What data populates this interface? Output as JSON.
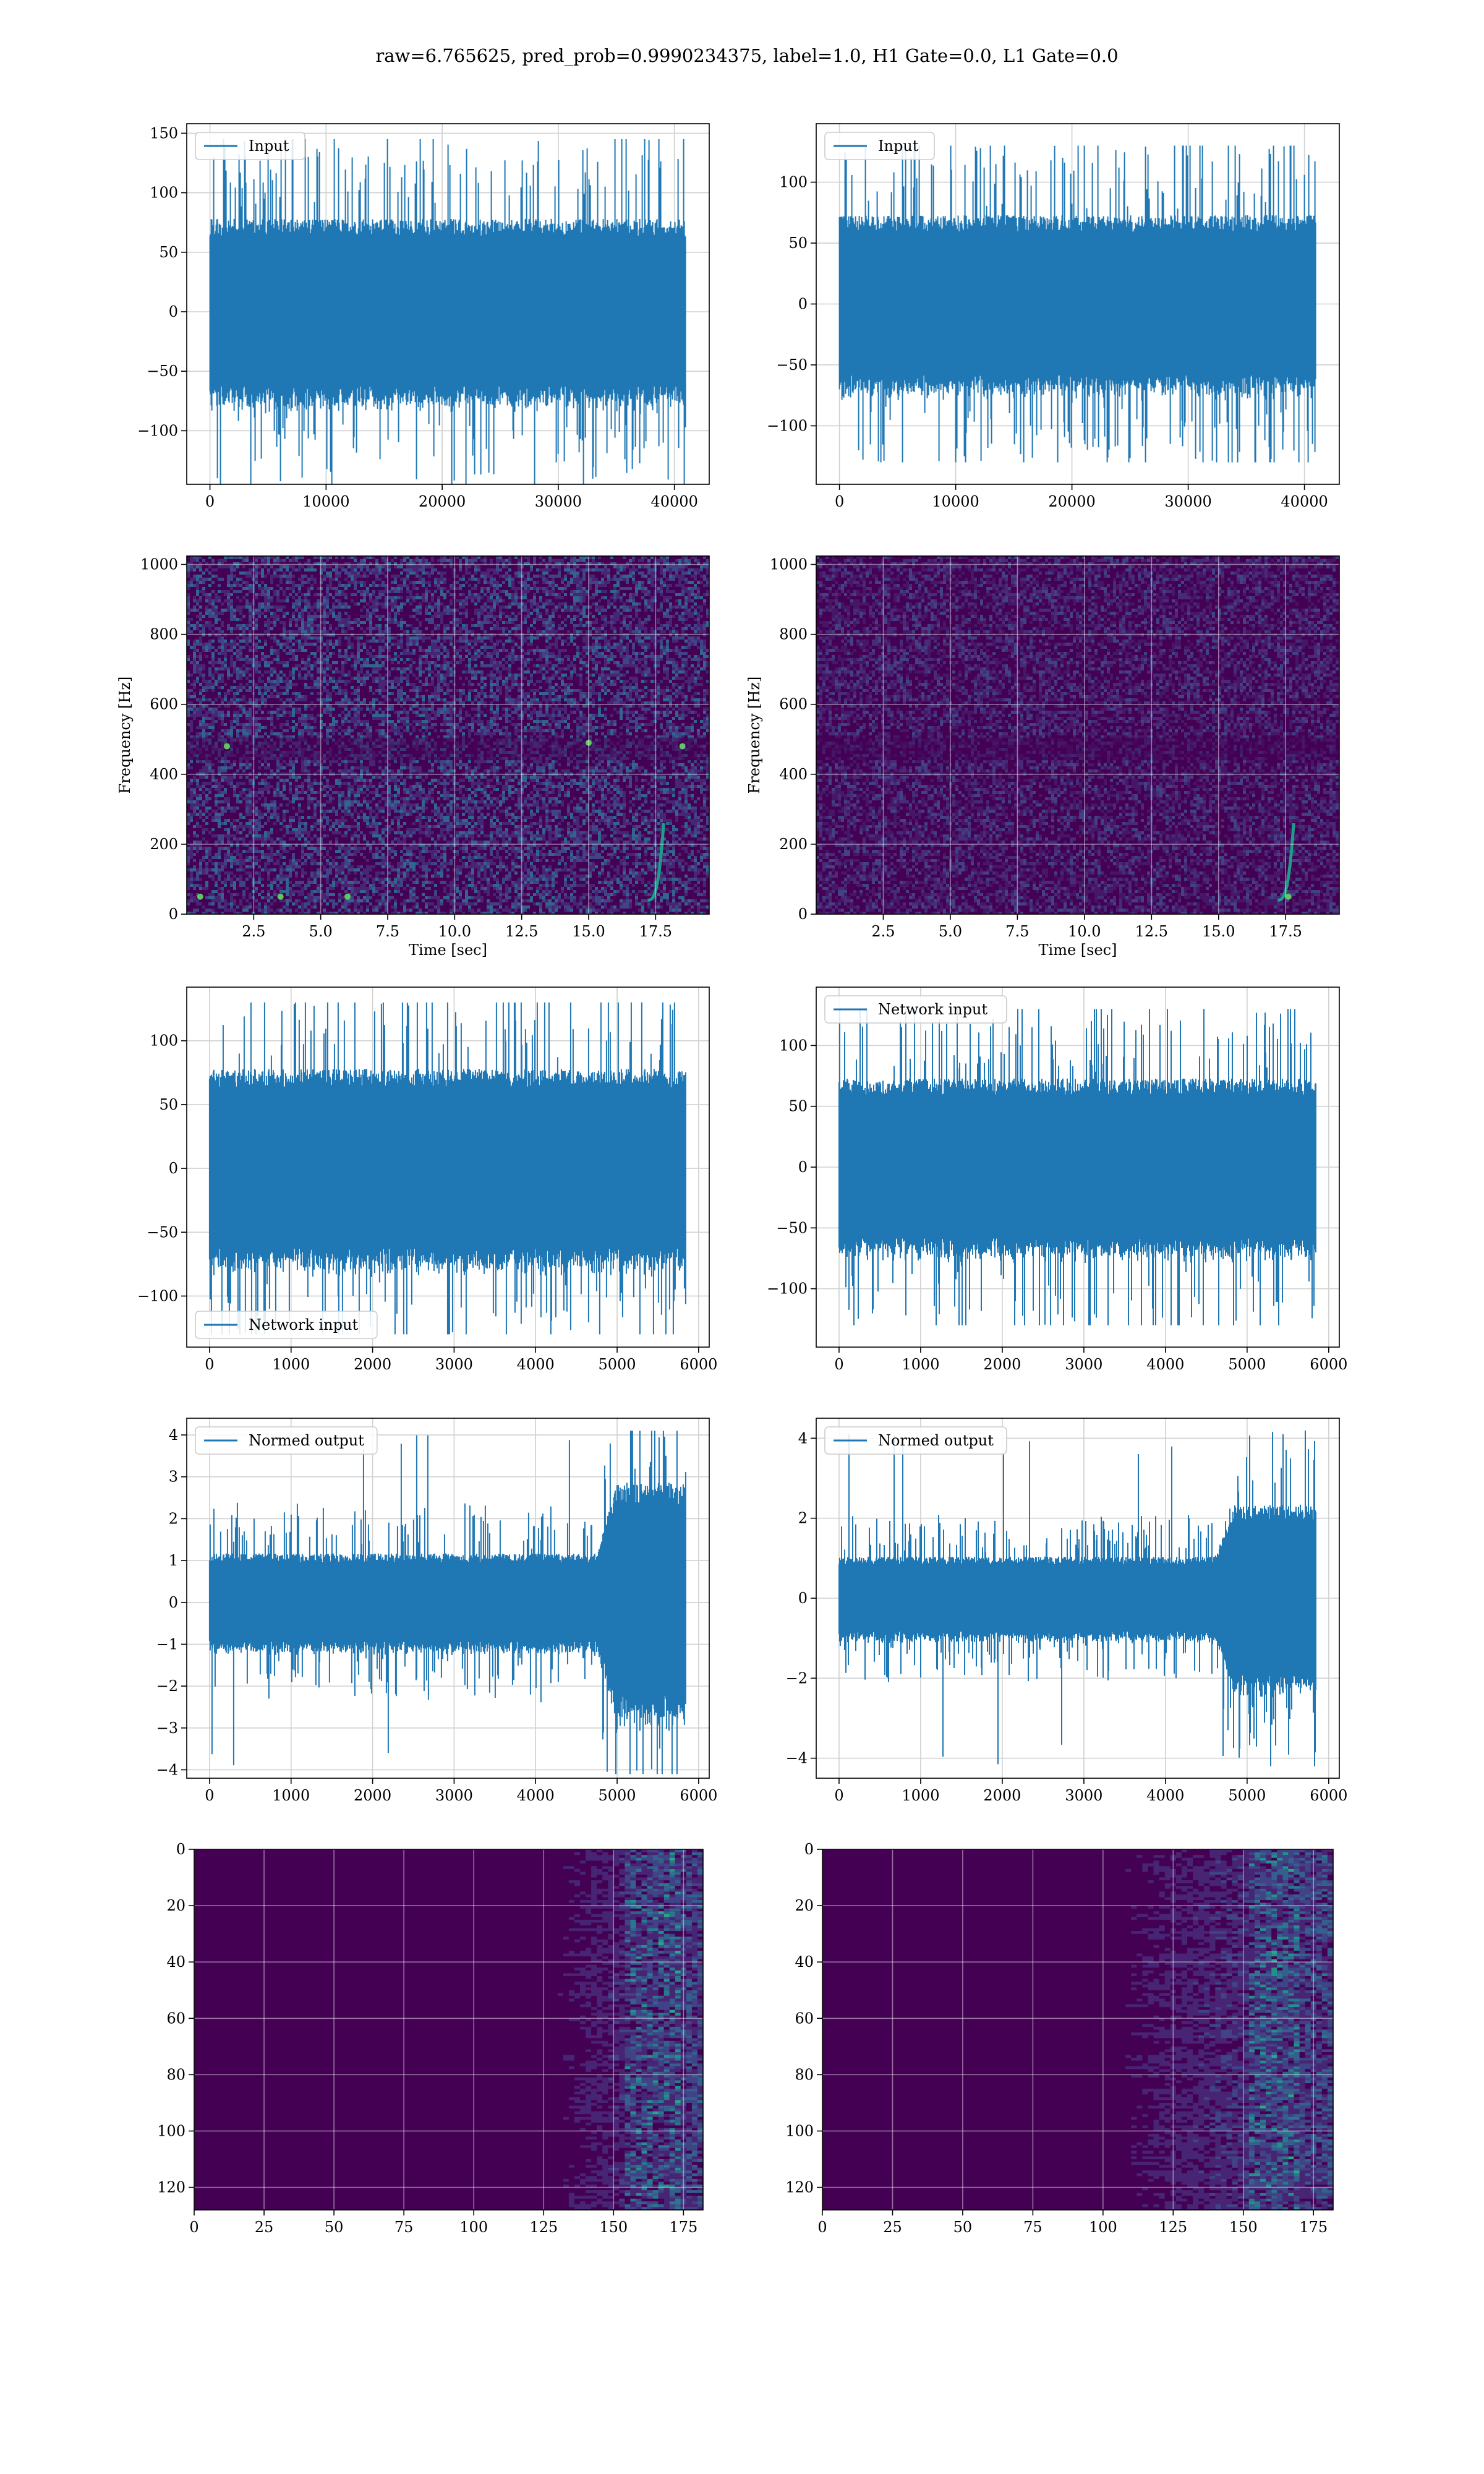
{
  "figure": {
    "suptitle": "raw=6.765625, pred_prob=0.9990234375, label=1.0, H1 Gate=0.0, L1 Gate=0.0"
  },
  "colors": {
    "line": "#1f77b4",
    "grid": "#d0d0d0",
    "viridis_low": "#440154",
    "viridis_high": "#fde725"
  },
  "chart_data": [
    {
      "id": "r1c1",
      "type": "line",
      "series": [
        {
          "name": "Input",
          "n_samples": 40960,
          "amplitude_std": 30,
          "peak_abs": 145
        }
      ],
      "legend": "upper left",
      "xlim": [
        -2000,
        43000
      ],
      "ylim": [
        -145,
        158
      ],
      "xticks": [
        0,
        10000,
        20000,
        30000,
        40000
      ],
      "yticks": [
        -100,
        -50,
        0,
        50,
        100,
        150
      ],
      "xlabel": "",
      "ylabel": "",
      "grid": true
    },
    {
      "id": "r1c2",
      "type": "line",
      "series": [
        {
          "name": "Input",
          "n_samples": 40960,
          "amplitude_std": 28,
          "peak_abs": 130
        }
      ],
      "legend": "upper left",
      "xlim": [
        -2000,
        43000
      ],
      "ylim": [
        -148,
        148
      ],
      "xticks": [
        0,
        10000,
        20000,
        30000,
        40000
      ],
      "yticks": [
        -100,
        -50,
        0,
        50,
        100
      ],
      "xlabel": "",
      "ylabel": "",
      "grid": true
    },
    {
      "id": "r2c1",
      "type": "heatmap",
      "colormap": "viridis",
      "xlim": [
        0,
        19.5
      ],
      "ylim": [
        0,
        1024
      ],
      "xticks": [
        2.5,
        5.0,
        7.5,
        10.0,
        12.5,
        15.0,
        17.5
      ],
      "yticks": [
        0,
        200,
        400,
        600,
        800,
        1000
      ],
      "xlabel": "Time [sec]",
      "ylabel": "Frequency [Hz]",
      "grid": true,
      "features": {
        "chirp_end_time": 17.8,
        "hot_band_hz": 480,
        "hot_spots": [
          [
            0.5,
            50
          ],
          [
            3.5,
            50
          ],
          [
            6.0,
            50
          ],
          [
            15.0,
            490
          ],
          [
            1.5,
            480
          ],
          [
            18.5,
            480
          ]
        ]
      }
    },
    {
      "id": "r2c2",
      "type": "heatmap",
      "colormap": "viridis",
      "xlim": [
        0,
        19.5
      ],
      "ylim": [
        0,
        1024
      ],
      "xticks": [
        2.5,
        5.0,
        7.5,
        10.0,
        12.5,
        15.0,
        17.5
      ],
      "yticks": [
        0,
        200,
        400,
        600,
        800,
        1000
      ],
      "xlabel": "Time [sec]",
      "ylabel": "Frequency [Hz]",
      "grid": true,
      "features": {
        "chirp_end_time": 17.8,
        "hot_band_hz": 480,
        "hot_spots": [
          [
            17.6,
            50
          ]
        ]
      }
    },
    {
      "id": "r3c1",
      "type": "line",
      "series": [
        {
          "name": "Network input",
          "n_samples": 5840,
          "amplitude_std": 30,
          "peak_abs": 130
        }
      ],
      "legend": "lower left",
      "xlim": [
        -280,
        6130
      ],
      "ylim": [
        -140,
        142
      ],
      "xticks": [
        0,
        1000,
        2000,
        3000,
        4000,
        5000,
        6000
      ],
      "yticks": [
        -100,
        -50,
        0,
        50,
        100
      ],
      "xlabel": "",
      "ylabel": "",
      "grid": true
    },
    {
      "id": "r3c2",
      "type": "line",
      "series": [
        {
          "name": "Network input",
          "n_samples": 5840,
          "amplitude_std": 28,
          "peak_abs": 130
        }
      ],
      "legend": "upper left",
      "xlim": [
        -280,
        6130
      ],
      "ylim": [
        -148,
        148
      ],
      "xticks": [
        0,
        1000,
        2000,
        3000,
        4000,
        5000,
        6000
      ],
      "yticks": [
        -100,
        -50,
        0,
        50,
        100
      ],
      "xlabel": "",
      "ylabel": "",
      "grid": true
    },
    {
      "id": "r4c1",
      "type": "line",
      "series": [
        {
          "name": "Normed output",
          "n_samples": 5840,
          "amplitude_std": 0.45,
          "burst_start": 4750,
          "burst_std": 1.1,
          "peak_abs": 4.1
        }
      ],
      "legend": "upper left",
      "xlim": [
        -280,
        6130
      ],
      "ylim": [
        -4.2,
        4.4
      ],
      "xticks": [
        0,
        1000,
        2000,
        3000,
        4000,
        5000,
        6000
      ],
      "yticks": [
        -4,
        -3,
        -2,
        -1,
        0,
        1,
        2,
        3,
        4
      ],
      "xlabel": "",
      "ylabel": "",
      "grid": true
    },
    {
      "id": "r4c2",
      "type": "line",
      "series": [
        {
          "name": "Normed output",
          "n_samples": 5840,
          "amplitude_std": 0.4,
          "burst_start": 4600,
          "burst_std": 0.9,
          "peak_abs": 4.2
        }
      ],
      "legend": "upper left",
      "xlim": [
        -280,
        6130
      ],
      "ylim": [
        -4.5,
        4.5
      ],
      "xticks": [
        0,
        1000,
        2000,
        3000,
        4000,
        5000,
        6000
      ],
      "yticks": [
        -4,
        -2,
        0,
        2,
        4
      ],
      "xlabel": "",
      "ylabel": "",
      "grid": true
    },
    {
      "id": "r5c1",
      "type": "heatmap",
      "colormap": "viridis",
      "xlim": [
        0,
        182
      ],
      "ylim": [
        128,
        0
      ],
      "xticks": [
        0,
        25,
        50,
        75,
        100,
        125,
        150,
        175
      ],
      "yticks": [
        0,
        20,
        40,
        60,
        80,
        100,
        120
      ],
      "xlabel": "",
      "ylabel": "",
      "grid": true,
      "features": {
        "activity_start": 125,
        "peak_col": 163
      }
    },
    {
      "id": "r5c2",
      "type": "heatmap",
      "colormap": "viridis",
      "xlim": [
        0,
        182
      ],
      "ylim": [
        128,
        0
      ],
      "xticks": [
        0,
        25,
        50,
        75,
        100,
        125,
        150,
        175
      ],
      "yticks": [
        0,
        20,
        40,
        60,
        80,
        100,
        120
      ],
      "xlabel": "",
      "ylabel": "",
      "grid": true,
      "features": {
        "activity_start": 100,
        "peak_col": 160
      }
    }
  ]
}
